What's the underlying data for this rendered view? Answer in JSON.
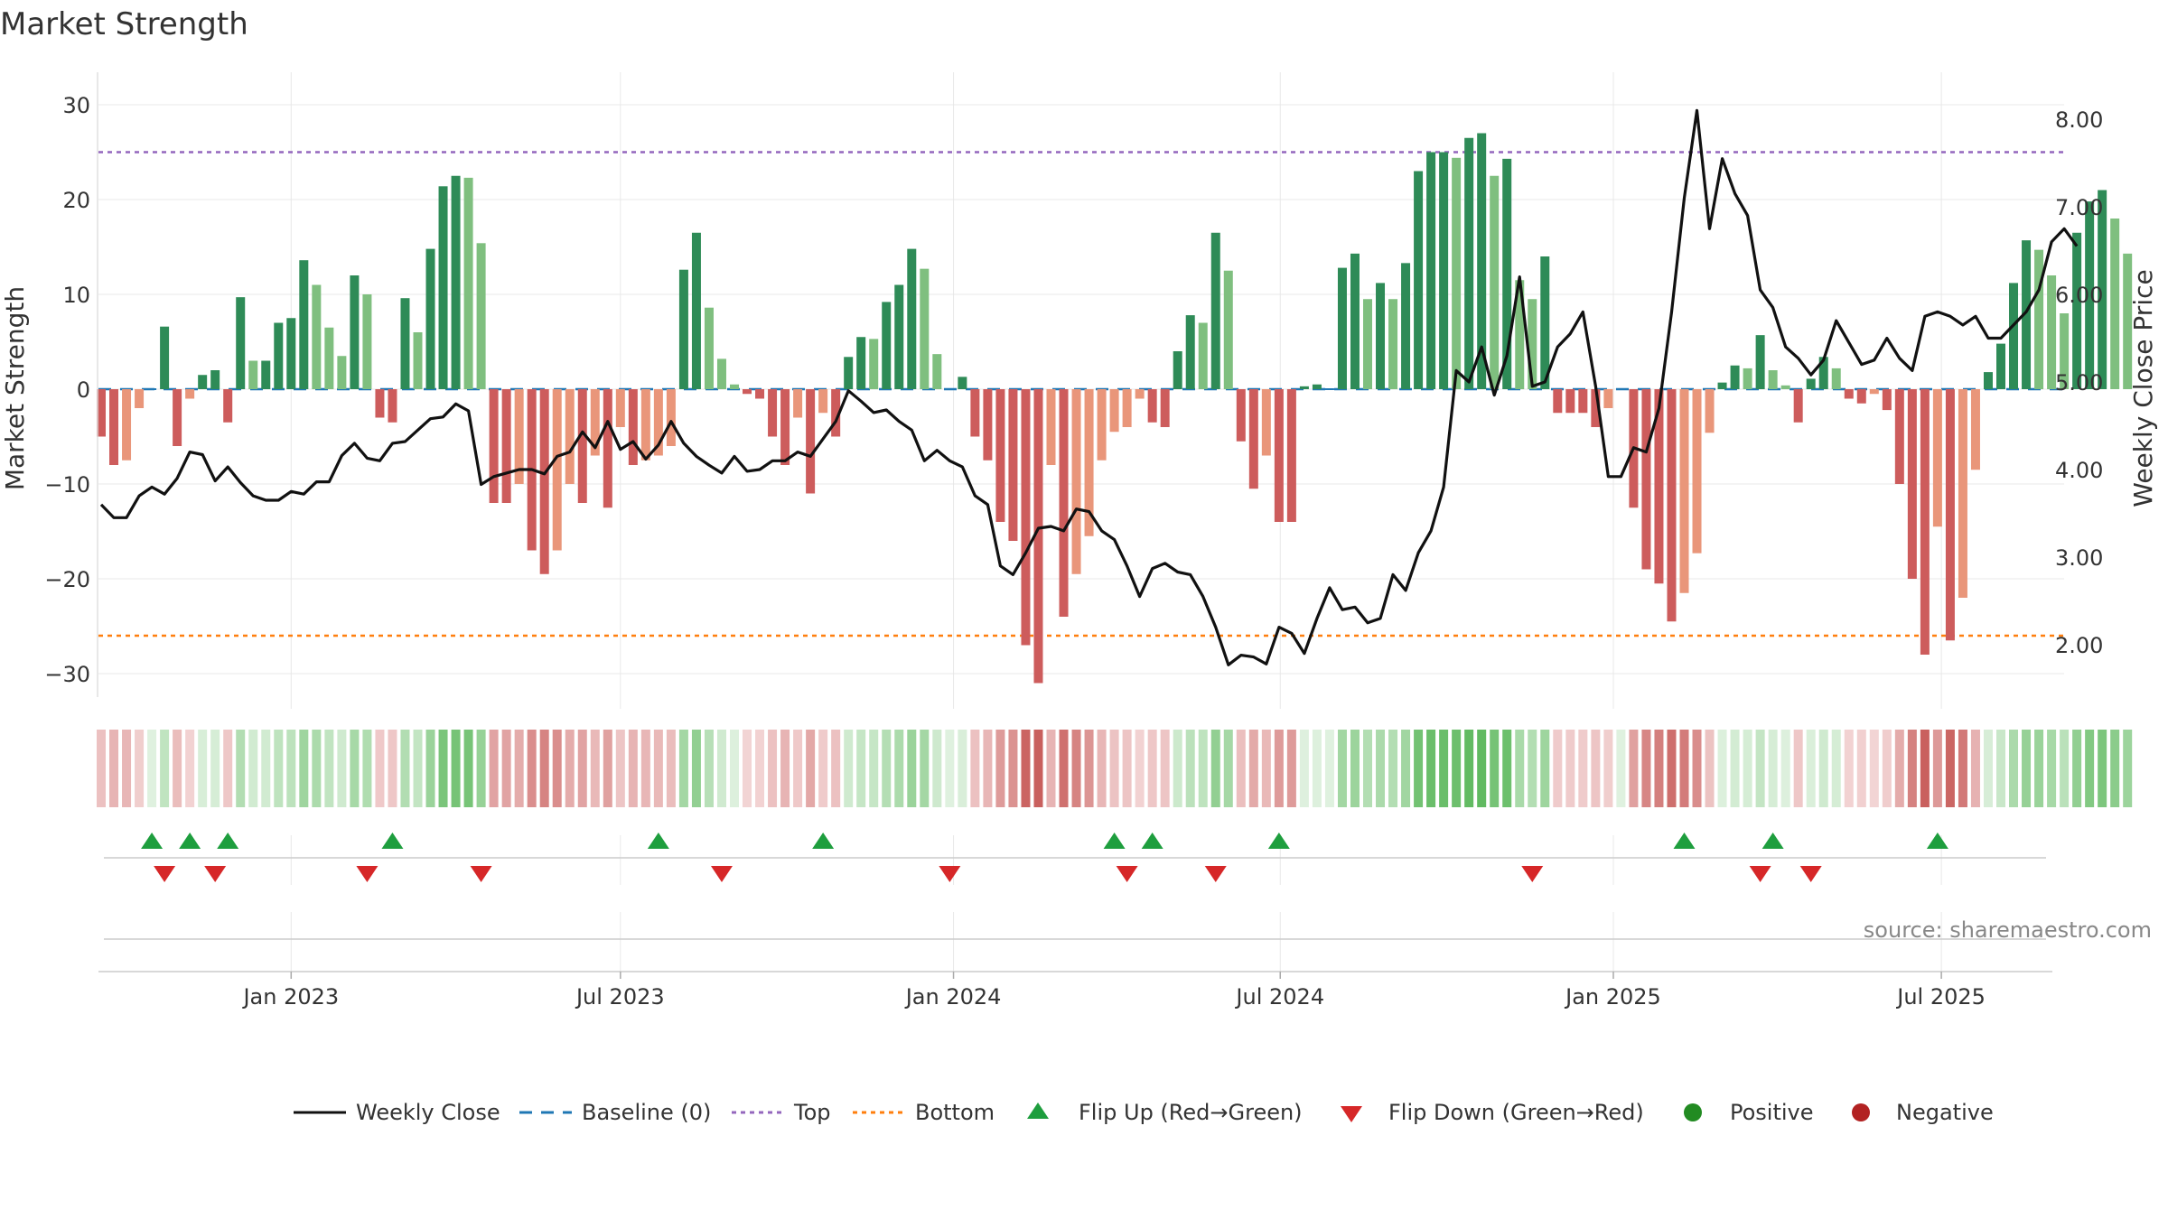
{
  "chart_data": {
    "type": "bar",
    "title": "Market Strength",
    "ylabel": "Market Strength",
    "y2label": "Weekly Close Price",
    "source": "source: sharemaestro.com",
    "ylim": [
      -33,
      33
    ],
    "y2lim": [
      1.3,
      8.3
    ],
    "yticks": [
      "30",
      "20",
      "10",
      "0",
      "−10",
      "−20",
      "−30"
    ],
    "yticks_values": [
      30,
      20,
      10,
      0,
      -10,
      -20,
      -30
    ],
    "y2ticks": [
      "8.00",
      "7.00",
      "6.00",
      "5.00",
      "4.00",
      "3.00",
      "2.00"
    ],
    "y2ticks_values": [
      8,
      7,
      6,
      5,
      4,
      3,
      2
    ],
    "xticks": [
      "Jan 2023",
      "Jul 2023",
      "Jan 2024",
      "Jul 2024",
      "Jan 2025",
      "Jul 2025"
    ],
    "xticks_weeks": [
      15,
      41,
      67.3,
      93.1,
      119.4,
      145.3
    ],
    "top_level": 25,
    "bottom_level": -26,
    "weeks": 157,
    "strength": [
      -5,
      -8,
      -7.5,
      -2,
      0,
      6.6,
      -6,
      -1,
      1.5,
      2,
      -3.5,
      9.7,
      3,
      3,
      7,
      7.5,
      13.6,
      11,
      6.5,
      3.5,
      12,
      10,
      -3,
      -3.5,
      9.6,
      6,
      14.8,
      21.4,
      22.5,
      22.3,
      15.4,
      -12,
      -12,
      -10,
      -17,
      -19.5,
      -17,
      -10,
      -12,
      -7,
      -12.5,
      -4,
      -8,
      -7.5,
      -7,
      -6,
      12.6,
      16.5,
      8.6,
      3.2,
      0.5,
      -0.5,
      -1,
      -5,
      -8,
      -3,
      -11,
      -2.5,
      -5,
      3.4,
      5.5,
      5.3,
      9.2,
      11,
      14.8,
      12.7,
      3.7,
      0,
      1.3,
      -5,
      -7.5,
      -14,
      -16,
      -27,
      -31,
      -8,
      -24,
      -19.5,
      -15.5,
      -7.5,
      -4.5,
      -4,
      -1,
      -3.5,
      -4,
      4,
      7.8,
      7,
      16.5,
      12.5,
      -5.5,
      -10.5,
      -7,
      -14,
      -14,
      0.3,
      0.5,
      0,
      12.8,
      14.3,
      9.5,
      11.2,
      9.5,
      13.3,
      23,
      25,
      25,
      24.4,
      26.5,
      27,
      22.5,
      24.3,
      11.5,
      9.5,
      14,
      -2.5,
      -2.5,
      -2.5,
      -4,
      -2,
      0,
      -12.5,
      -19,
      -20.5,
      -24.5,
      -21.5,
      -17.3,
      -4.6,
      0.7,
      2.5,
      2.2,
      5.7,
      2,
      0.4,
      -3.5,
      1.1,
      3.4,
      2.2,
      -1,
      -1.5,
      -0.5,
      -2.2,
      -10,
      -20,
      -28,
      -14.5,
      -26.5,
      -22,
      -8.5,
      1.8,
      4.8,
      11.2,
      15.7,
      14.7,
      12,
      8,
      16.5,
      19.8,
      21,
      18,
      14.3
    ],
    "price": [
      3.6,
      3.45,
      3.45,
      3.7,
      3.8,
      3.72,
      3.9,
      4.2,
      4.17,
      3.87,
      4.03,
      3.85,
      3.7,
      3.65,
      3.65,
      3.75,
      3.72,
      3.86,
      3.86,
      4.16,
      4.3,
      4.13,
      4.1,
      4.3,
      4.32,
      4.45,
      4.58,
      4.6,
      4.75,
      4.67,
      3.83,
      3.92,
      3.96,
      4.0,
      4.0,
      3.95,
      4.15,
      4.2,
      4.43,
      4.25,
      4.55,
      4.23,
      4.32,
      4.12,
      4.28,
      4.55,
      4.3,
      4.15,
      4.05,
      3.96,
      4.15,
      3.98,
      4.0,
      4.1,
      4.1,
      4.2,
      4.15,
      4.35,
      4.55,
      4.9,
      4.78,
      4.65,
      4.68,
      4.55,
      4.45,
      4.1,
      4.22,
      4.1,
      4.03,
      3.7,
      3.6,
      2.9,
      2.8,
      3.05,
      3.33,
      3.35,
      3.3,
      3.55,
      3.52,
      3.3,
      3.2,
      2.9,
      2.55,
      2.87,
      2.93,
      2.83,
      2.8,
      2.55,
      2.2,
      1.77,
      1.88,
      1.86,
      1.78,
      2.2,
      2.13,
      1.9,
      2.3,
      2.65,
      2.4,
      2.43,
      2.25,
      2.3,
      2.8,
      2.62,
      3.05,
      3.3,
      3.8,
      5.13,
      5.0,
      5.4,
      4.85,
      5.3,
      6.2,
      4.95,
      5.0,
      5.4,
      5.55,
      5.8,
      4.95,
      3.92,
      3.92,
      4.25,
      4.2,
      4.7,
      5.8,
      7.1,
      8.1,
      6.75,
      7.55,
      7.15,
      6.9,
      6.05,
      5.85,
      5.4,
      5.27,
      5.08,
      5.25,
      5.7,
      5.45,
      5.2,
      5.25,
      5.5,
      5.27,
      5.13,
      5.75,
      5.8,
      5.75,
      5.65,
      5.75,
      5.5,
      5.5,
      5.65,
      5.8,
      6.05,
      6.6,
      6.75,
      6.55
    ],
    "flip_up_weeks": [
      4,
      7,
      10,
      23,
      44,
      57,
      80,
      83,
      93,
      125,
      132,
      145
    ],
    "flip_down_weeks": [
      5,
      9,
      21,
      30,
      49,
      67,
      81,
      88,
      113,
      131,
      135
    ],
    "legend": [
      "Weekly Close",
      "Baseline (0)",
      "Top",
      "Bottom",
      "Flip Up (Red→Green)",
      "Flip Down (Green→Red)",
      "Positive",
      "Negative"
    ]
  },
  "colors": {
    "pos_dark": "#2e8b57",
    "pos_light": "#7fbf7f",
    "neg_dark": "#cd5c5c",
    "neg_light": "#e9967a",
    "price_line": "#111111",
    "baseline": "#1f77b4",
    "top_line": "#9467bd",
    "bottom_line": "#ff7f0e",
    "flip_up": "#1e9e3e",
    "flip_down": "#d62728",
    "positive_marker": "#228b22",
    "negative_marker": "#b22222"
  }
}
